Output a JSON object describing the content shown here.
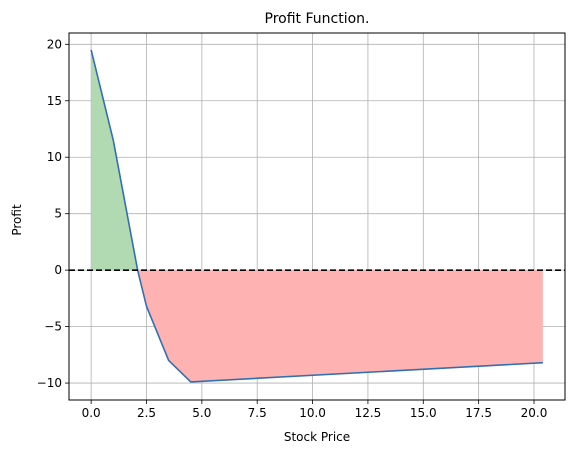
{
  "chart_data": {
    "type": "line",
    "title": "Profit Function.",
    "xlabel": "Stock Price",
    "ylabel": "Profit",
    "xlim": [
      -1.0,
      21.4
    ],
    "ylim": [
      -11.5,
      21.0
    ],
    "xticks": [
      0.0,
      2.5,
      5.0,
      7.5,
      10.0,
      12.5,
      15.0,
      17.5,
      20.0
    ],
    "xtick_labels": [
      "0.0",
      "2.5",
      "5.0",
      "7.5",
      "10.0",
      "12.5",
      "15.0",
      "17.5",
      "20.0"
    ],
    "yticks": [
      -10,
      -5,
      0,
      5,
      10,
      15,
      20
    ],
    "ytick_labels": [
      "−10",
      "−5",
      "0",
      "5",
      "10",
      "15",
      "20"
    ],
    "grid": true,
    "series": [
      {
        "x": [
          0.0,
          1.0,
          2.1,
          2.5,
          3.5,
          4.5,
          20.4
        ],
        "y": [
          19.5,
          11.5,
          0.0,
          -3.2,
          -8.0,
          -9.9,
          -8.2
        ],
        "color": "#3070b0"
      }
    ],
    "reference_line": {
      "y": 0,
      "style": "dashed",
      "color": "#000000"
    },
    "fill_positive_color": "#b2dab2",
    "fill_negative_color": "#ffb2b2"
  }
}
